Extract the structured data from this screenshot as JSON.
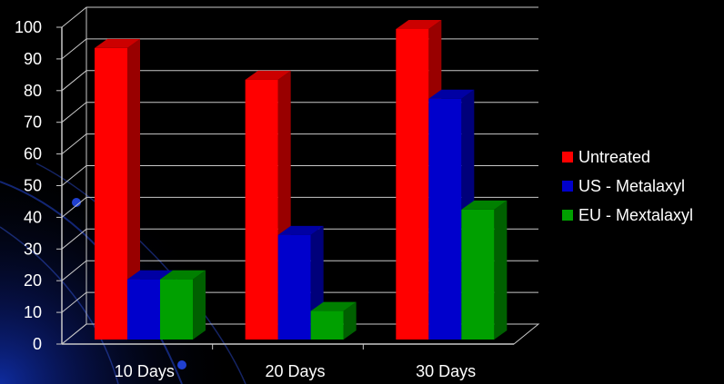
{
  "chart_data": {
    "type": "bar",
    "style": "3d-clustered-column",
    "categories": [
      "10 Days",
      "20 Days",
      "30 Days"
    ],
    "series": [
      {
        "name": "Untreated",
        "values": [
          92,
          82,
          98
        ],
        "color": "#ff0000"
      },
      {
        "name": "US - Metalaxyl",
        "values": [
          19,
          33,
          76
        ],
        "color": "#0000cc"
      },
      {
        "name": "EU - Mextalaxyl",
        "values": [
          19,
          9,
          41
        ],
        "color": "#00a000"
      }
    ],
    "yticks": [
      "0",
      "10",
      "20",
      "30",
      "40",
      "50",
      "60",
      "70",
      "80",
      "90",
      "100"
    ],
    "ylim": [
      0,
      100
    ],
    "grid": true,
    "legend_position": "right",
    "title": "",
    "xlabel": "",
    "ylabel": ""
  },
  "theme": {
    "background": "#000000",
    "text": "#ffffff",
    "gridline": "#c8c8c8"
  }
}
